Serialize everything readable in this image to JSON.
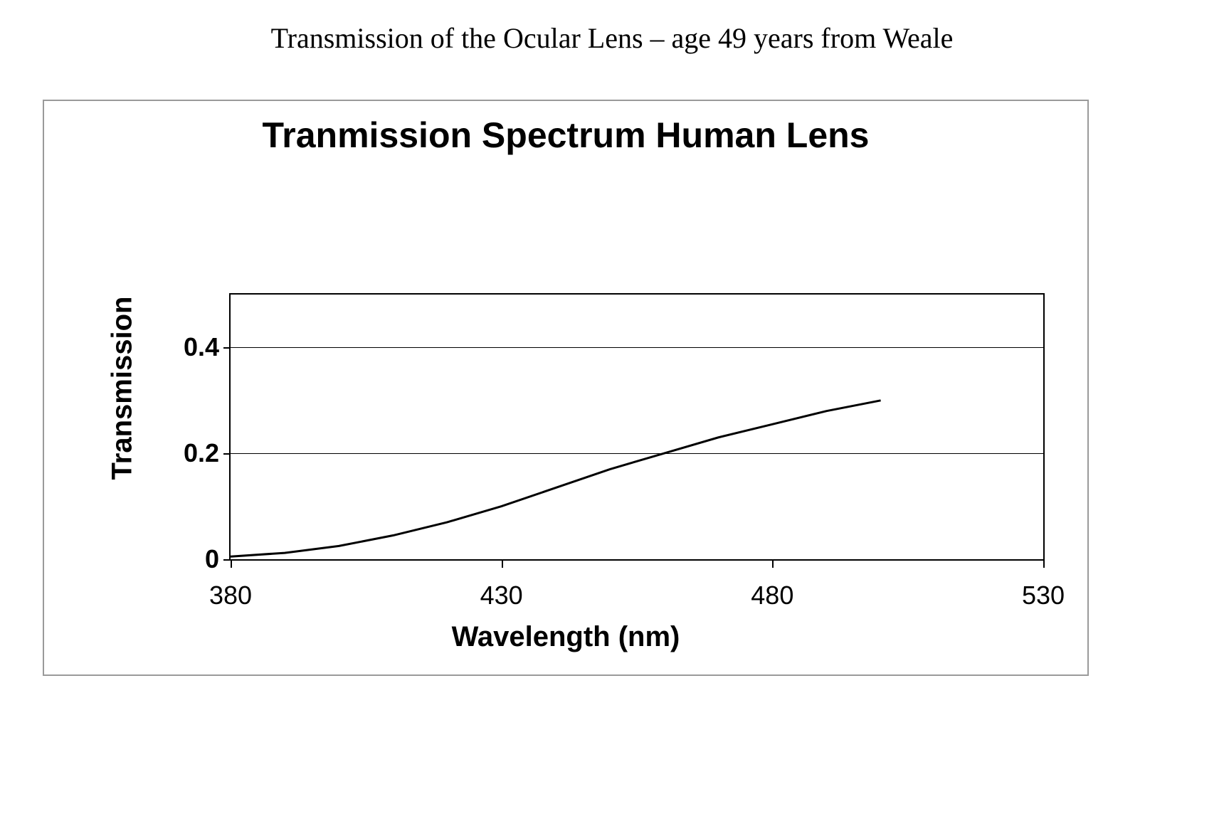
{
  "caption": "Transmission of the Ocular Lens – age 49 years from Weale",
  "caption_fontsize": 40,
  "caption_font": "Times New Roman",
  "chart": {
    "type": "line",
    "title": "Tranmission Spectrum Human Lens",
    "title_fontsize": 50,
    "title_fontweight": 700,
    "xlabel": "Wavelength (nm)",
    "ylabel": "Transmission",
    "label_fontsize": 40,
    "label_fontweight": 700,
    "xlim": [
      380,
      530
    ],
    "ylim": [
      0,
      0.5
    ],
    "xticks": [
      380,
      430,
      480,
      530
    ],
    "yticks": [
      0,
      0.2,
      0.4
    ],
    "tick_fontsize": 36,
    "ytick_fontweight": 700,
    "xtick_fontweight": 400,
    "grid_y": true,
    "grid_color": "#000000",
    "border_color": "#000000",
    "outer_border_color": "#9a9a9a",
    "background_color": "#ffffff",
    "line_color": "#000000",
    "line_width": 3,
    "series": [
      {
        "name": "lens-transmission",
        "x": [
          380,
          390,
          400,
          410,
          420,
          430,
          440,
          450,
          460,
          470,
          480,
          490,
          500
        ],
        "y": [
          0.005,
          0.012,
          0.025,
          0.045,
          0.07,
          0.1,
          0.135,
          0.17,
          0.2,
          0.23,
          0.255,
          0.28,
          0.3
        ]
      }
    ]
  }
}
